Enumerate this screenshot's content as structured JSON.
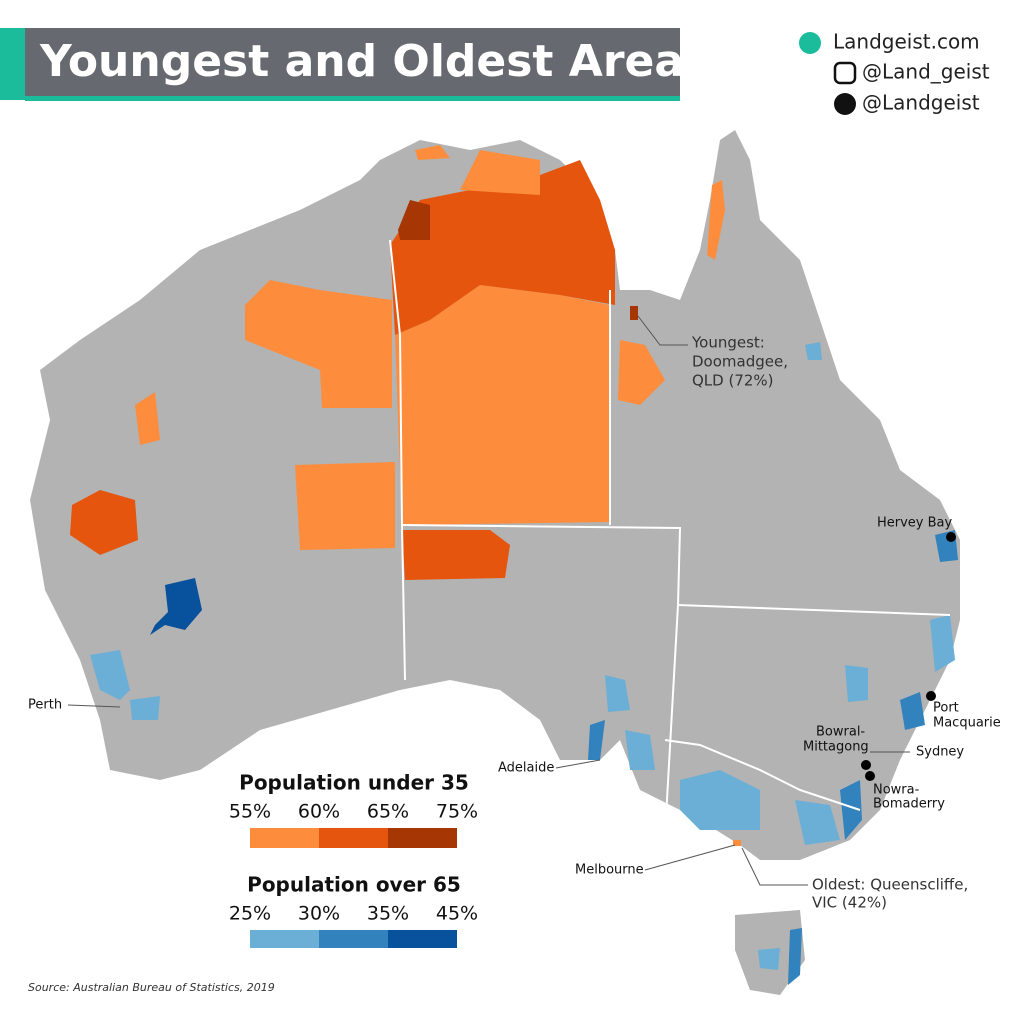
{
  "header": {
    "title": "Youngest and Oldest Areas"
  },
  "brand": {
    "website": "Landgeist.com",
    "instagram": "@Land_geist",
    "twitter": "@Landgeist"
  },
  "cities": {
    "perth": "Perth",
    "adelaide": "Adelaide",
    "melbourne": "Melbourne",
    "hervey_bay": "Hervey Bay",
    "port_macquarie": [
      "Port",
      "Macquarie"
    ],
    "sydney": "Sydney",
    "bowral_mittagong": [
      "Bowral-",
      "Mittagong"
    ],
    "nowra_bomaderry": [
      "Nowra-",
      "Bomaderry"
    ]
  },
  "annotations": {
    "youngest": [
      "Youngest:",
      "Doomadgee,",
      "QLD (72%)"
    ],
    "oldest": [
      "Oldest: Queenscliffe,",
      "VIC (42%)"
    ]
  },
  "legend": {
    "under_35": {
      "title": "Population under 35",
      "labels": [
        "55%",
        "60%",
        "65%",
        "75%"
      ]
    },
    "over_65": {
      "title": "Population over 65",
      "labels": [
        "25%",
        "30%",
        "35%",
        "45%"
      ]
    }
  },
  "footer": {
    "source": "Source: Australian Bureau of Statistics, 2019"
  }
}
